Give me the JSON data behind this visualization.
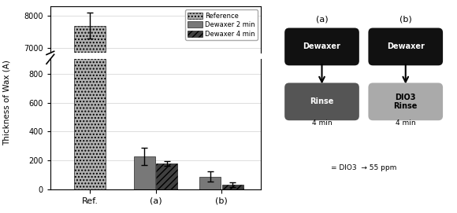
{
  "categories": [
    "Ref.",
    "(a)",
    "(b)"
  ],
  "ref_value": 7700,
  "ref_error": 400,
  "dewaxer2_values": [
    230,
    90
  ],
  "dewaxer2_errors": [
    60,
    35
  ],
  "dewaxer4_values": [
    180,
    35
  ],
  "dewaxer4_errors": [
    15,
    15
  ],
  "ylabel": "Thickness of Wax (A)",
  "ref_color": "#b0b0b0",
  "ref_hatch": "....",
  "dew2_color": "#787878",
  "dew2_hatch": "",
  "dew4_color": "#404040",
  "dew4_hatch": "////",
  "background_color": "#ffffff",
  "grid_color": "#d0d0d0",
  "legend_labels": [
    "Reference",
    "Dewaxer 2 min",
    "Dewaxer 4 min"
  ],
  "diagram": {
    "bg_color": "#e0e0e0",
    "dewaxer_color": "#111111",
    "rinse_color": "#555555",
    "dio3_rinse_color": "#aaaaaa",
    "dewaxer_text": "Dewaxer",
    "rinse_text": "Rinse",
    "dio3_rinse_text": "DIO3\nRinse",
    "time_label": "4 min",
    "note": "= DIO3  → 55 ppm"
  }
}
